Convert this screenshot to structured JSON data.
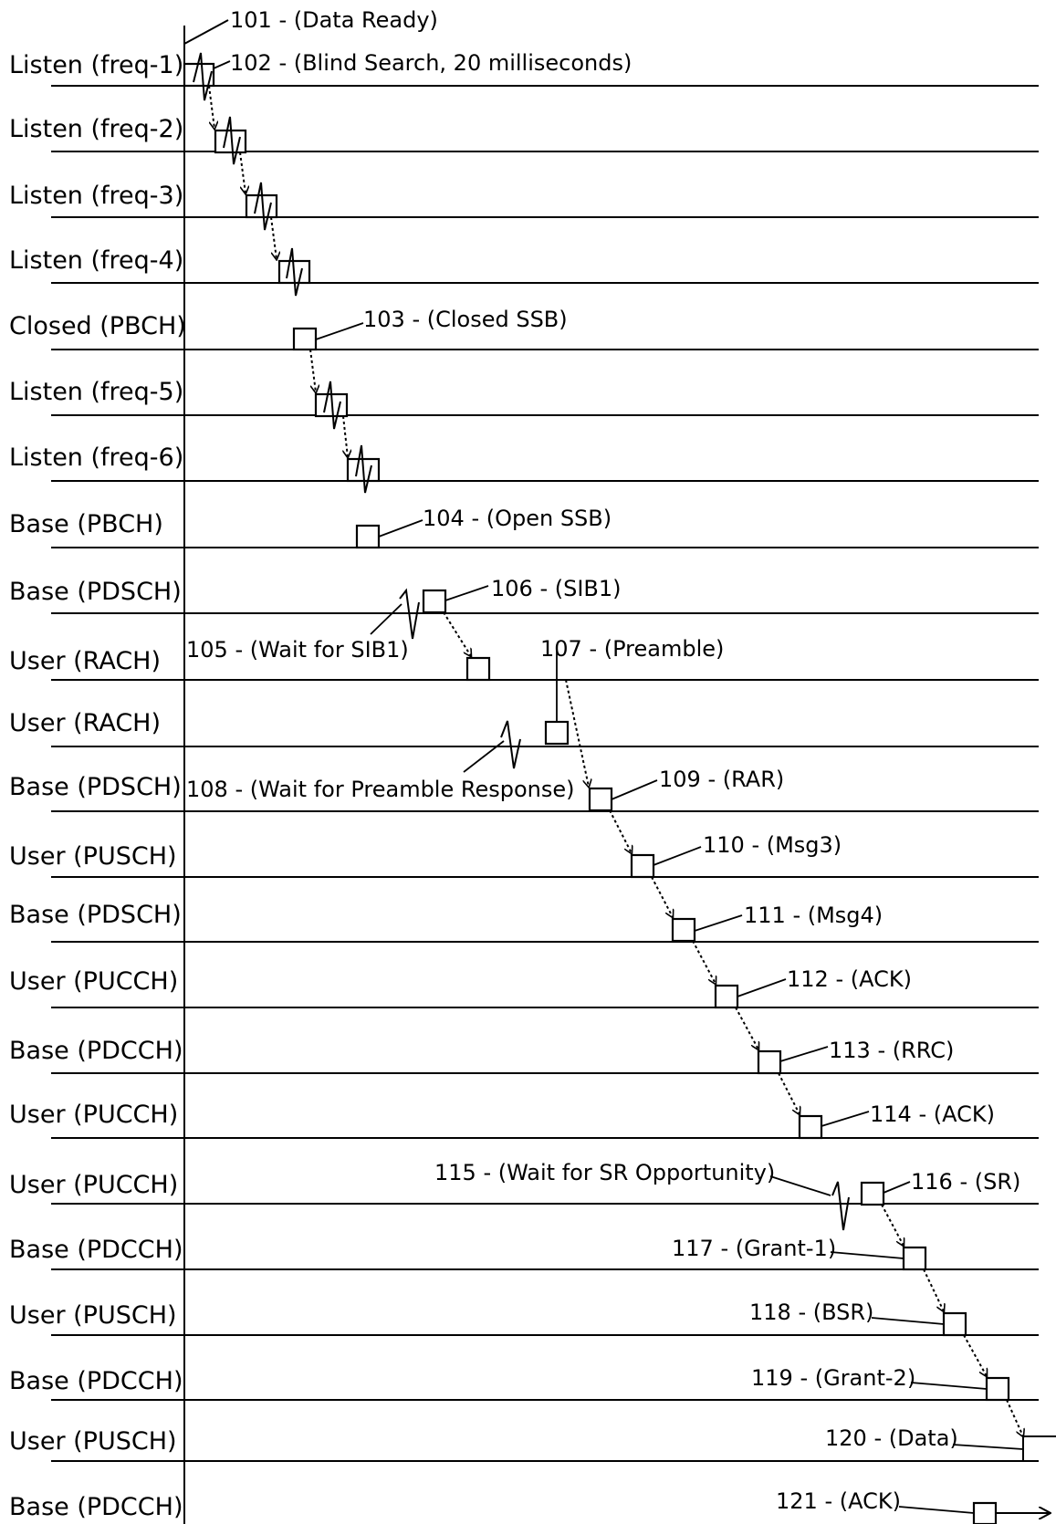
{
  "lanes": [
    "Listen (freq-1)",
    "Listen (freq-2)",
    "Listen (freq-3)",
    "Listen (freq-4)",
    "Closed (PBCH)",
    "Listen (freq-5)",
    "Listen (freq-6)",
    "Base (PBCH)",
    "Base (PDSCH)",
    "User (RACH)",
    "User (RACH)",
    "Base (PDSCH)",
    "User (PUSCH)",
    "Base (PDSCH)",
    "User (PUCCH)",
    "Base (PDCCH)",
    "User (PUCCH)",
    "User (PUCCH)",
    "Base (PDCCH)",
    "User (PUSCH)",
    "Base (PDCCH)",
    "User (PUSCH)",
    "Base (PDCCH)"
  ],
  "annotations": [
    "101 - (Data Ready)",
    "102 - (Blind Search, 20 milliseconds)",
    "103 - (Closed SSB)",
    "104 - (Open SSB)",
    "105 - (Wait for SIB1)",
    "106 - (SIB1)",
    "107 - (Preamble)",
    "108 - (Wait for Preamble Response)",
    "109 - (RAR)",
    "110 - (Msg3)",
    "111 - (Msg4)",
    "112 - (ACK)",
    "113 - (RRC)",
    "114 - (ACK)",
    "115 - (Wait for SR Opportunity)",
    "116 - (SR)",
    "117 - (Grant-1)",
    "118 - (BSR)",
    "119 - (Grant-2)",
    "120 - (Data)",
    "121 - (ACK)"
  ]
}
